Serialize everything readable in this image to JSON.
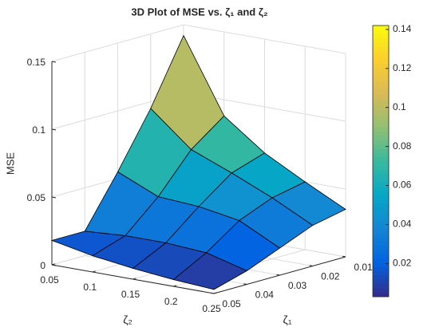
{
  "chart_data": {
    "type": "surface",
    "title": "3D Plot of MSE vs. ζ₁ and ζ₂",
    "xlabel": "ζ₂",
    "ylabel": "ζ₁",
    "zlabel": "MSE",
    "x": [
      0.05,
      0.1,
      0.15,
      0.2,
      0.25
    ],
    "y": [
      0.01,
      0.02,
      0.03,
      0.04,
      0.05
    ],
    "z": [
      [
        0.142,
        0.088,
        0.066,
        0.05,
        0.035
      ],
      [
        0.095,
        0.07,
        0.058,
        0.045,
        0.03
      ],
      [
        0.055,
        0.042,
        0.04,
        0.035,
        0.02
      ],
      [
        0.018,
        0.02,
        0.02,
        0.018,
        0.01
      ],
      [
        0.018,
        0.012,
        0.008,
        0.005,
        0.003
      ]
    ],
    "xlim": [
      0.05,
      0.25
    ],
    "xticks": [
      0.05,
      0.1,
      0.15,
      0.2,
      0.25
    ],
    "ylim": [
      0.01,
      0.05
    ],
    "yticks": [
      0.01,
      0.02,
      0.03,
      0.04,
      0.05
    ],
    "zlim": [
      0,
      0.15
    ],
    "zticks": [
      0,
      0.05,
      0.1,
      0.15
    ],
    "grid": true,
    "colormap": [
      "#352a87",
      "#0363e1",
      "#1485d4",
      "#06a7c6",
      "#38b99e",
      "#92bf73",
      "#d9ba56",
      "#fcce2e",
      "#f9fb0e"
    ],
    "clim": [
      0.003,
      0.142
    ],
    "colorbar_ticks": [
      0.02,
      0.04,
      0.06,
      0.08,
      0.1,
      0.12,
      0.14
    ]
  }
}
